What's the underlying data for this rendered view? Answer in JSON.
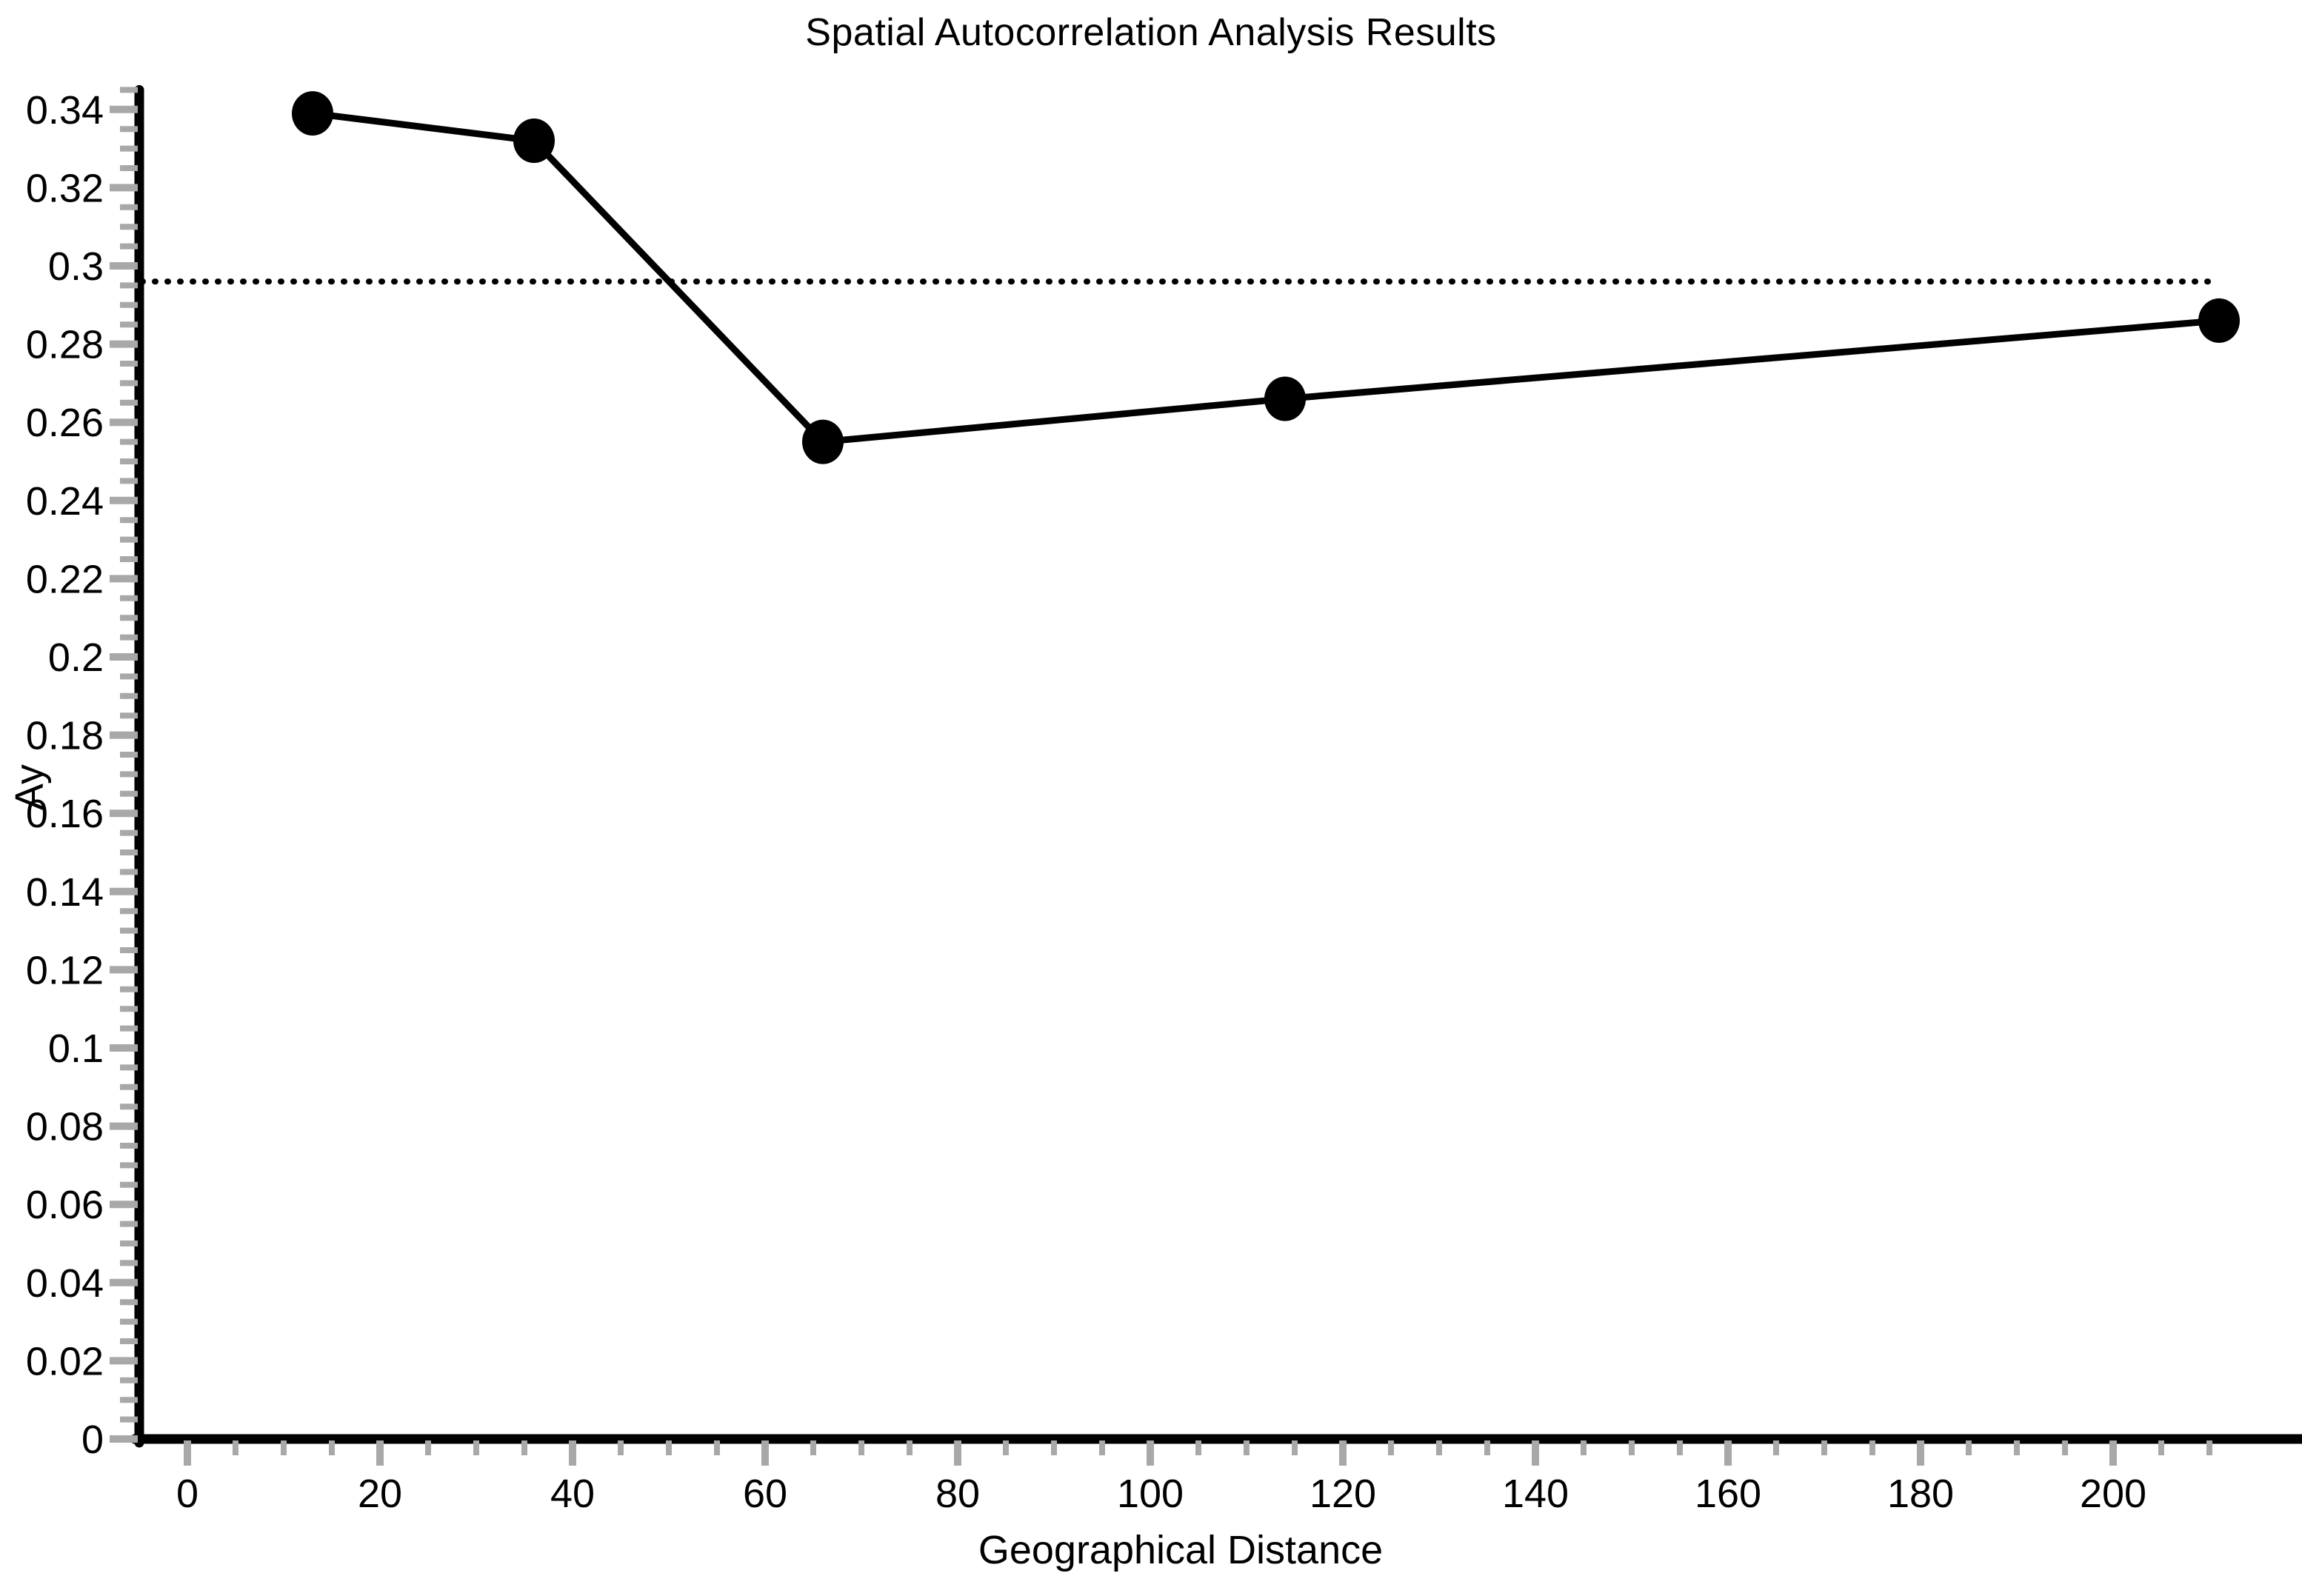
{
  "chart_data": {
    "type": "line",
    "title": "Spatial Autocorrelation Analysis Results",
    "xlabel": "Geographical Distance",
    "ylabel": "Ay",
    "x": [
      13,
      36,
      66,
      114,
      211
    ],
    "y": [
      0.339,
      0.332,
      0.255,
      0.266,
      0.286
    ],
    "series_name": "Ay",
    "reference_line_y": 0.296,
    "xlim": [
      0,
      215
    ],
    "ylim": [
      0,
      0.345
    ],
    "x_major_ticks": [
      0,
      20,
      40,
      60,
      80,
      100,
      120,
      140,
      160,
      180,
      200
    ],
    "x_tick_labels": [
      "0",
      "20",
      "40",
      "60",
      "80",
      "100",
      "120",
      "140",
      "160",
      "180",
      "200"
    ],
    "x_minor_step": 5,
    "x_minor_max": 210,
    "y_major_step": 0.02,
    "y_tick_labels": [
      "0",
      "0.02",
      "0.04",
      "0.06",
      "0.08",
      "0.1",
      "0.12",
      "0.14",
      "0.16",
      "0.18",
      "0.2",
      "0.22",
      "0.24",
      "0.26",
      "0.28",
      "0.3",
      "0.32",
      "0.34"
    ],
    "y_minor_step": 0.005,
    "grid": "off",
    "legend": "none",
    "line_color": "#000000",
    "marker_color": "#000000",
    "axis_color": "#000000",
    "tick_color": "#a8a8a8",
    "background_color": "#ffffff"
  }
}
